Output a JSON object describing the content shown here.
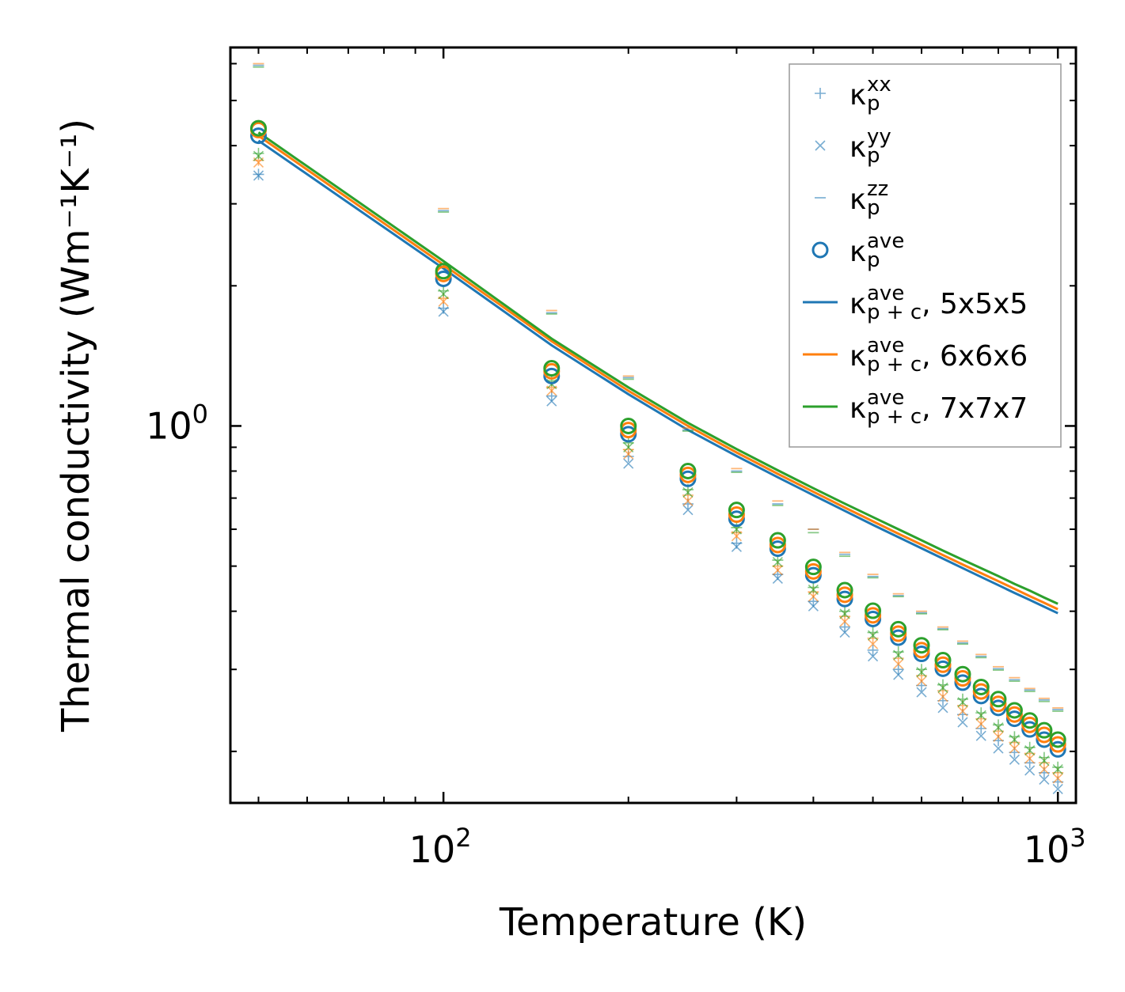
{
  "chart_data": {
    "type": "scatter",
    "xscale": "log",
    "yscale": "log",
    "xlim": [
      45,
      1070
    ],
    "ylim": [
      0.155,
      6.5
    ],
    "xlabel": "Temperature (K)",
    "ylabel": "Thermal conductivity (Wm⁻¹K⁻¹)",
    "x_tick_labels": [
      {
        "value": 100,
        "base": "10",
        "exp": "2"
      },
      {
        "value": 1000,
        "base": "10",
        "exp": "3"
      }
    ],
    "y_tick_labels": [
      {
        "value": 1,
        "base": "10",
        "exp": "0"
      }
    ],
    "x": [
      50,
      100,
      150,
      200,
      250,
      300,
      350,
      400,
      450,
      500,
      550,
      600,
      650,
      700,
      750,
      800,
      850,
      900,
      950,
      1000
    ],
    "colors": {
      "blue": "#1f77b4",
      "orange": "#ff7f0e",
      "green": "#2ca02c"
    },
    "series": [
      {
        "name": "kp_xx 5x5x5",
        "marker": "plus",
        "color": "#1f77b4",
        "values": [
          3.47,
          1.79,
          1.16,
          0.86,
          0.68,
          0.56,
          0.48,
          0.42,
          0.37,
          0.33,
          0.3,
          0.277,
          0.257,
          0.24,
          0.224,
          0.211,
          0.199,
          0.189,
          0.18,
          0.172
        ]
      },
      {
        "name": "kp_yy 5x5x5",
        "marker": "x",
        "color": "#1f77b4",
        "values": [
          3.45,
          1.76,
          1.13,
          0.83,
          0.66,
          0.55,
          0.47,
          0.41,
          0.36,
          0.32,
          0.292,
          0.268,
          0.248,
          0.231,
          0.216,
          0.203,
          0.192,
          0.182,
          0.174,
          0.166
        ]
      },
      {
        "name": "kp_zz 5x5x5",
        "marker": "dash",
        "color": "#1f77b4",
        "values": [
          5.95,
          2.9,
          1.75,
          1.27,
          0.98,
          0.8,
          0.68,
          0.6,
          0.53,
          0.475,
          0.432,
          0.397,
          0.367,
          0.342,
          0.32,
          0.301,
          0.285,
          0.271,
          0.258,
          0.246
        ]
      },
      {
        "name": "kp_xx 6x6x6",
        "marker": "plus",
        "color": "#ff7f0e",
        "values": [
          3.72,
          1.88,
          1.21,
          0.89,
          0.71,
          0.59,
          0.5,
          0.44,
          0.39,
          0.35,
          0.317,
          0.291,
          0.27,
          0.251,
          0.235,
          0.221,
          0.209,
          0.198,
          0.189,
          0.18
        ]
      },
      {
        "name": "kp_yy 6x6x6",
        "marker": "x",
        "color": "#ff7f0e",
        "values": [
          3.68,
          1.85,
          1.19,
          0.87,
          0.69,
          0.58,
          0.49,
          0.43,
          0.38,
          0.34,
          0.308,
          0.283,
          0.262,
          0.244,
          0.229,
          0.215,
          0.203,
          0.193,
          0.183,
          0.175
        ]
      },
      {
        "name": "kp_zz 6x6x6",
        "marker": "dash",
        "color": "#ff7f0e",
        "values": [
          6.0,
          2.93,
          1.77,
          1.28,
          0.99,
          0.81,
          0.69,
          0.6,
          0.535,
          0.48,
          0.436,
          0.4,
          0.37,
          0.345,
          0.323,
          0.304,
          0.288,
          0.273,
          0.26,
          0.248
        ]
      },
      {
        "name": "kp_xx 7x7x7",
        "marker": "plus",
        "color": "#2ca02c",
        "values": [
          3.85,
          1.95,
          1.25,
          0.92,
          0.73,
          0.605,
          0.515,
          0.45,
          0.4,
          0.36,
          0.327,
          0.3,
          0.278,
          0.259,
          0.242,
          0.228,
          0.215,
          0.204,
          0.194,
          0.185
        ]
      },
      {
        "name": "kp_yy 7x7x7",
        "marker": "x",
        "color": "#2ca02c",
        "values": [
          3.8,
          1.92,
          1.23,
          0.9,
          0.72,
          0.6,
          0.51,
          0.445,
          0.395,
          0.355,
          0.322,
          0.296,
          0.274,
          0.255,
          0.239,
          0.225,
          0.212,
          0.201,
          0.191,
          0.183
        ]
      },
      {
        "name": "kp_zz 7x7x7",
        "marker": "dash",
        "color": "#2ca02c",
        "values": [
          5.9,
          2.88,
          1.74,
          1.26,
          0.975,
          0.795,
          0.675,
          0.59,
          0.525,
          0.472,
          0.43,
          0.395,
          0.365,
          0.34,
          0.318,
          0.299,
          0.283,
          0.269,
          0.256,
          0.244
        ]
      },
      {
        "name": "kp_ave 5x5x5",
        "marker": "circle",
        "color": "#1f77b4",
        "values": [
          4.2,
          2.07,
          1.28,
          0.96,
          0.77,
          0.632,
          0.545,
          0.478,
          0.425,
          0.385,
          0.351,
          0.324,
          0.301,
          0.281,
          0.263,
          0.248,
          0.235,
          0.223,
          0.212,
          0.202
        ]
      },
      {
        "name": "kp_ave 6x6x6",
        "marker": "circle",
        "color": "#ff7f0e",
        "values": [
          4.32,
          2.12,
          1.31,
          0.98,
          0.785,
          0.645,
          0.555,
          0.487,
          0.434,
          0.392,
          0.358,
          0.33,
          0.307,
          0.287,
          0.269,
          0.253,
          0.24,
          0.228,
          0.217,
          0.207
        ]
      },
      {
        "name": "kp_ave 7x7x7",
        "marker": "circle",
        "color": "#2ca02c",
        "values": [
          4.36,
          2.15,
          1.33,
          1.0,
          0.8,
          0.66,
          0.568,
          0.498,
          0.444,
          0.401,
          0.366,
          0.338,
          0.314,
          0.293,
          0.275,
          0.259,
          0.245,
          0.233,
          0.222,
          0.212
        ]
      },
      {
        "name": "kpc_ave 5x5x5",
        "marker": "line",
        "color": "#1f77b4",
        "values": [
          4.1,
          2.18,
          1.49,
          1.17,
          0.98,
          0.862,
          0.776,
          0.71,
          0.657,
          0.613,
          0.577,
          0.546,
          0.519,
          0.495,
          0.474,
          0.455,
          0.438,
          0.423,
          0.409,
          0.396
        ]
      },
      {
        "name": "kpc_ave 6x6x6",
        "marker": "line",
        "color": "#ff7f0e",
        "values": [
          4.2,
          2.22,
          1.52,
          1.19,
          1.0,
          0.877,
          0.789,
          0.722,
          0.668,
          0.624,
          0.587,
          0.556,
          0.528,
          0.504,
          0.483,
          0.464,
          0.447,
          0.431,
          0.417,
          0.404
        ]
      },
      {
        "name": "kpc_ave 7x7x7",
        "marker": "line",
        "color": "#2ca02c",
        "values": [
          4.27,
          2.26,
          1.54,
          1.21,
          1.015,
          0.892,
          0.803,
          0.735,
          0.681,
          0.637,
          0.6,
          0.568,
          0.54,
          0.516,
          0.495,
          0.476,
          0.458,
          0.443,
          0.428,
          0.415
        ]
      }
    ],
    "legend": {
      "position": "top-right",
      "entries": [
        {
          "marker": "plus",
          "color": "#1f77b4",
          "sym": "κ",
          "sub": "p",
          "sup": "xx",
          "suffix": ""
        },
        {
          "marker": "x",
          "color": "#1f77b4",
          "sym": "κ",
          "sub": "p",
          "sup": "yy",
          "suffix": ""
        },
        {
          "marker": "dash",
          "color": "#1f77b4",
          "sym": "κ",
          "sub": "p",
          "sup": "zz",
          "suffix": ""
        },
        {
          "marker": "circle",
          "color": "#1f77b4",
          "sym": "κ",
          "sub": "p",
          "sup": "ave",
          "suffix": ""
        },
        {
          "marker": "line",
          "color": "#1f77b4",
          "sym": "κ",
          "sub": "p + c",
          "sup": "ave",
          "suffix": ", 5x5x5"
        },
        {
          "marker": "line",
          "color": "#ff7f0e",
          "sym": "κ",
          "sub": "p + c",
          "sup": "ave",
          "suffix": ", 6x6x6"
        },
        {
          "marker": "line",
          "color": "#2ca02c",
          "sym": "κ",
          "sub": "p + c",
          "sup": "ave",
          "suffix": ", 7x7x7"
        }
      ]
    }
  }
}
